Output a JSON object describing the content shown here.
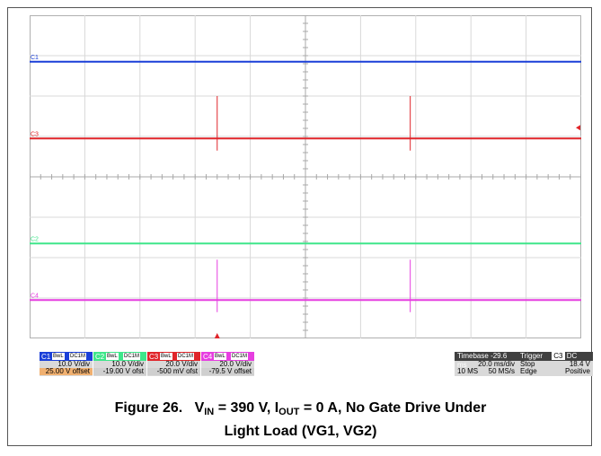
{
  "caption": {
    "figure_label": "Figure 26.",
    "text_parts": {
      "v": "V",
      "v_sub": "IN",
      "v_value": " = 390 V, I",
      "i_sub": "OUT",
      "i_value": " = 0 A, No Gate Drive Under",
      "line2": "Light Load (VG1, VG2)"
    }
  },
  "chart_data": {
    "type": "line",
    "title": "",
    "x_divisions": 10,
    "y_divisions": 8,
    "x_range": [
      0,
      10
    ],
    "y_range_div": [
      -4,
      4
    ],
    "grid": true,
    "series": [
      {
        "name": "C1",
        "color": "#1a3fd8",
        "level_div": 2.85,
        "spikes": []
      },
      {
        "name": "C3",
        "color": "#e0252a",
        "level_div": 0.95,
        "spikes": [
          {
            "x_div": 3.4,
            "height_div": 1.05
          },
          {
            "x_div": 6.9,
            "height_div": 1.05
          }
        ]
      },
      {
        "name": "C2",
        "color": "#3ee68a",
        "level_div": -1.65,
        "spikes": []
      },
      {
        "name": "C4",
        "color": "#e63ee0",
        "level_div": -3.05,
        "spikes": [
          {
            "x_div": 3.4,
            "height_div": 1.0
          },
          {
            "x_div": 6.9,
            "height_div": 1.0
          }
        ]
      }
    ],
    "trace_labels": [
      "C1",
      "C3",
      "C2",
      "C4"
    ]
  },
  "status_bar": {
    "channels": [
      {
        "name": "C1",
        "tags": [
          "BwL",
          "DC1M"
        ],
        "vdiv": "10.0 V/div",
        "offset": "25.00 V offset",
        "color": "#1a3fd8"
      },
      {
        "name": "C2",
        "tags": [
          "BwL",
          "DC1M"
        ],
        "vdiv": "10.0 V/div",
        "offset": "-19.00 V ofst",
        "color": "#3ee68a"
      },
      {
        "name": "C3",
        "tags": [
          "BwL",
          "DC1M"
        ],
        "vdiv": "20.0 V/div",
        "offset": "-500 mV ofst",
        "color": "#e0252a"
      },
      {
        "name": "C4",
        "tags": [
          "BwL",
          "DC1M"
        ],
        "vdiv": "20.0 V/div",
        "offset": "-79.5 V offset",
        "color": "#e63ee0"
      }
    ],
    "timebase": {
      "label": "Timebase",
      "value": "-29.6 ms",
      "per_div": "20.0 ms/div",
      "samples": "10 MS",
      "rate": "50 MS/s"
    },
    "trigger": {
      "label": "Trigger",
      "channel": "C3",
      "coupling": "DC",
      "mode": "Stop",
      "level": "18.4 V",
      "type": "Edge",
      "slope": "Positive"
    }
  }
}
